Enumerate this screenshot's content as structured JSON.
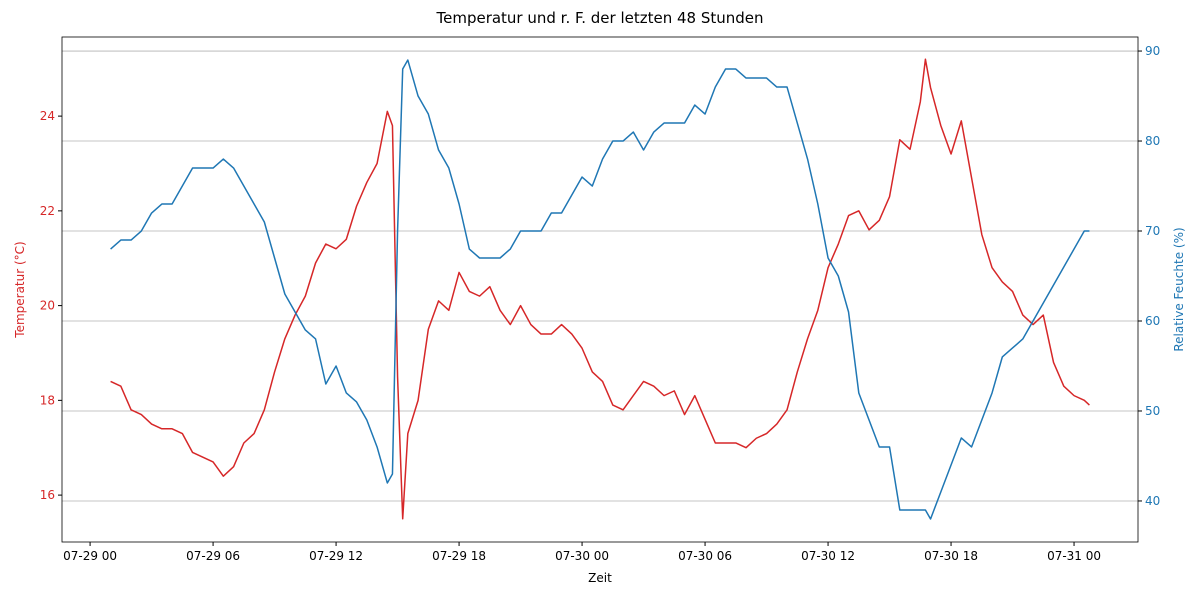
{
  "chart_data": {
    "type": "line",
    "title": "Temperatur und r. F. der letzten 48 Stunden",
    "x_label": "Zeit",
    "y_label": "Temperatur (°C)",
    "y2_label": "Relative Feuchte (%)",
    "x": [
      1,
      1.5,
      2,
      2.5,
      3,
      3.5,
      4,
      4.5,
      5,
      5.5,
      6,
      6.5,
      7,
      7.5,
      8,
      8.5,
      9,
      9.5,
      10,
      10.5,
      11,
      11.5,
      12,
      12.5,
      13,
      13.5,
      14,
      14.5,
      14.75,
      15,
      15.25,
      15.5,
      16,
      16.5,
      17,
      17.5,
      18,
      18.5,
      19,
      19.5,
      20,
      20.5,
      21,
      21.5,
      22,
      22.5,
      23,
      23.5,
      24,
      24.5,
      25,
      25.5,
      26,
      26.5,
      27,
      27.5,
      28,
      28.5,
      29,
      29.5,
      30,
      30.5,
      31,
      31.5,
      32,
      32.5,
      33,
      33.5,
      34,
      34.5,
      35,
      35.5,
      36,
      36.5,
      37,
      37.5,
      38,
      38.5,
      39,
      39.5,
      40,
      40.5,
      40.75,
      41,
      41.5,
      42,
      42.5,
      43,
      43.5,
      44,
      44.5,
      45,
      45.5,
      46,
      46.5,
      47,
      47.5,
      48,
      48.5,
      48.75
    ],
    "series": [
      {
        "name": "Temperatur (°C)",
        "color": "#d62728",
        "axis": "y",
        "values": [
          18.4,
          18.3,
          17.8,
          17.7,
          17.5,
          17.4,
          17.4,
          17.3,
          16.9,
          16.8,
          16.7,
          16.4,
          16.6,
          17.1,
          17.3,
          17.8,
          18.6,
          19.3,
          19.8,
          20.2,
          20.9,
          21.3,
          21.2,
          21.4,
          22.1,
          22.6,
          23.0,
          24.1,
          23.8,
          18.5,
          15.5,
          17.3,
          18.0,
          19.5,
          20.1,
          19.9,
          20.7,
          20.3,
          20.2,
          20.4,
          19.9,
          19.6,
          20.0,
          19.6,
          19.4,
          19.4,
          19.6,
          19.4,
          19.1,
          18.6,
          18.4,
          17.9,
          17.8,
          18.1,
          18.4,
          18.3,
          18.1,
          18.2,
          17.7,
          18.1,
          17.6,
          17.1,
          17.1,
          17.1,
          17.0,
          17.2,
          17.3,
          17.5,
          17.8,
          18.6,
          19.3,
          19.9,
          20.8,
          21.3,
          21.9,
          22.0,
          21.6,
          21.8,
          22.3,
          23.5,
          23.3,
          24.3,
          25.2,
          24.6,
          23.8,
          23.2,
          23.9,
          22.7,
          21.5,
          20.8,
          20.5,
          20.3,
          19.8,
          19.6,
          19.8,
          18.8,
          18.3,
          18.1,
          18.0,
          17.9
        ]
      },
      {
        "name": "Relative Feuchte (%)",
        "color": "#1f77b4",
        "axis": "y2",
        "values": [
          68,
          69,
          69,
          70,
          72,
          73,
          73,
          75,
          77,
          77,
          77,
          78,
          77,
          75,
          73,
          71,
          67,
          63,
          61,
          59,
          58,
          53,
          55,
          52,
          51,
          49,
          46,
          42,
          43,
          70,
          88,
          89,
          85,
          83,
          79,
          77,
          73,
          68,
          67,
          67,
          67,
          68,
          70,
          70,
          70,
          72,
          72,
          74,
          76,
          75,
          78,
          80,
          80,
          81,
          79,
          81,
          82,
          82,
          82,
          84,
          83,
          86,
          88,
          88,
          87,
          87,
          87,
          86,
          86,
          82,
          78,
          73,
          67,
          65,
          61,
          52,
          49,
          46,
          46,
          39,
          39,
          39,
          39,
          38,
          41,
          44,
          47,
          46,
          49,
          52,
          56,
          57,
          58,
          60,
          62,
          64,
          66,
          68,
          70,
          70
        ]
      }
    ],
    "xlim": [
      -1.37,
      51.12
    ],
    "xticks": [
      {
        "value": 0,
        "label": "07-29 00"
      },
      {
        "value": 6,
        "label": "07-29 06"
      },
      {
        "value": 12,
        "label": "07-29 12"
      },
      {
        "value": 18,
        "label": "07-29 18"
      },
      {
        "value": 24,
        "label": "07-30 00"
      },
      {
        "value": 30,
        "label": "07-30 06"
      },
      {
        "value": 36,
        "label": "07-30 12"
      },
      {
        "value": 42,
        "label": "07-30 18"
      },
      {
        "value": 48,
        "label": "07-31 00"
      }
    ],
    "ylim": [
      15.01,
      25.67
    ],
    "yticks": [
      16,
      18,
      20,
      22,
      24
    ],
    "y2lim": [
      35.44,
      91.56
    ],
    "y2ticks": [
      40,
      50,
      60,
      70,
      80,
      90
    ],
    "grid": "y2"
  }
}
